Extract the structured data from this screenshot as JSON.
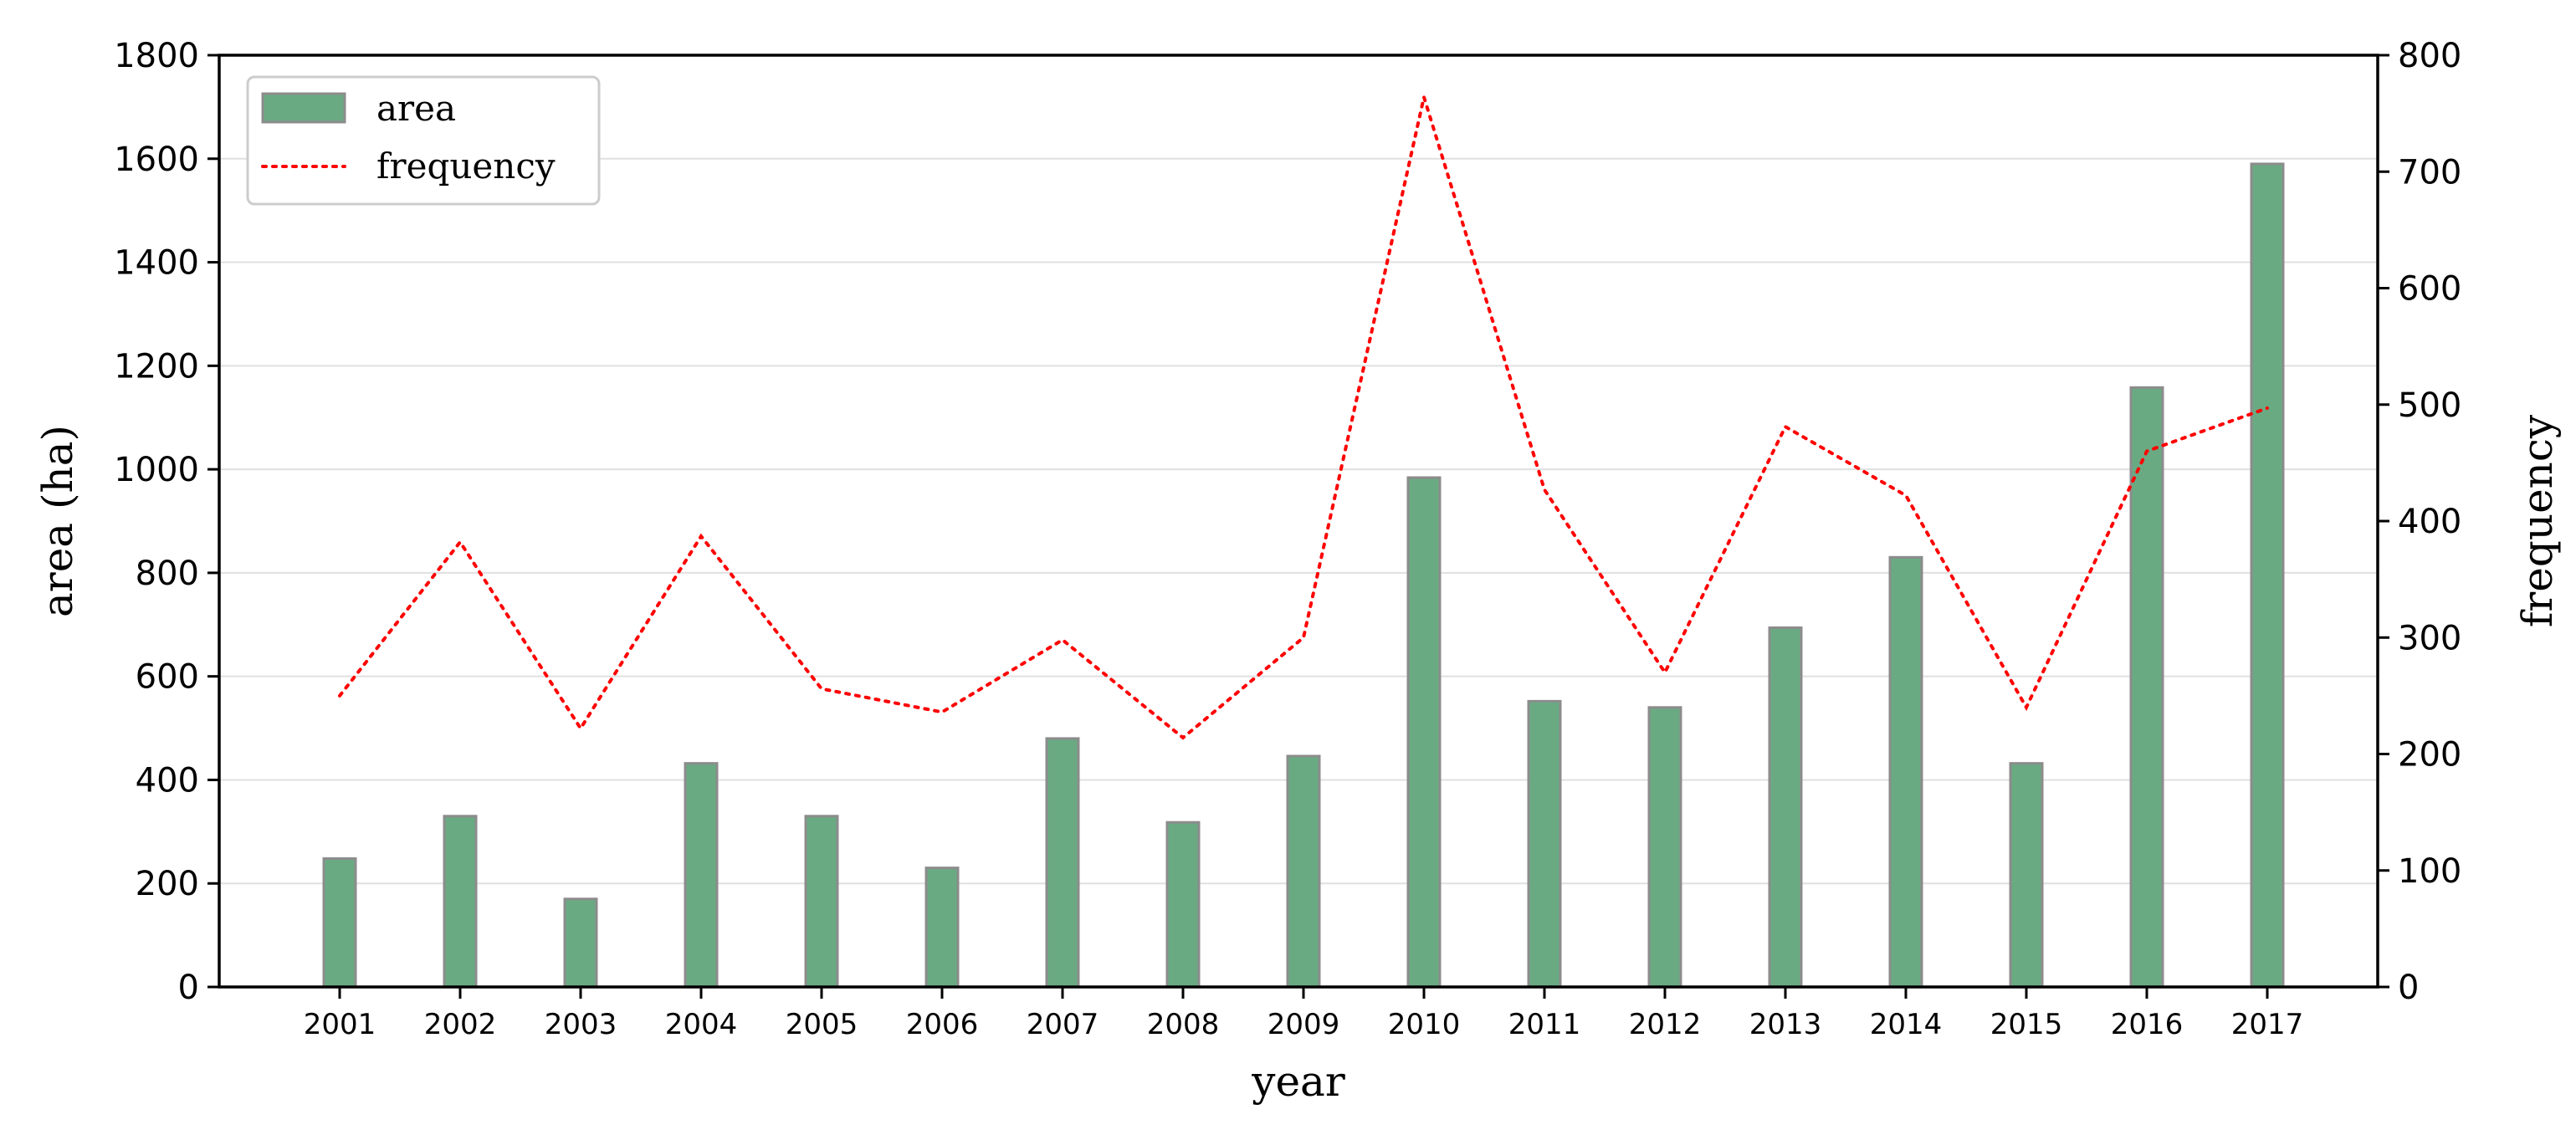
{
  "chart_data": {
    "type": "bar",
    "categories": [
      "2001",
      "2002",
      "2003",
      "2004",
      "2005",
      "2006",
      "2007",
      "2008",
      "2009",
      "2010",
      "2011",
      "2012",
      "2013",
      "2014",
      "2015",
      "2016",
      "2017"
    ],
    "series": [
      {
        "name": "area",
        "kind": "bar",
        "axis": "left",
        "color": "#6aaa83",
        "edge_color": "#8c8c8c",
        "values": [
          248,
          330,
          170,
          432,
          330,
          230,
          480,
          318,
          446,
          984,
          552,
          540,
          694,
          830,
          432,
          1158,
          1590
        ]
      },
      {
        "name": "frequency",
        "kind": "line",
        "line_style": "dotted",
        "axis": "right",
        "color": "#ff0000",
        "values": [
          250,
          382,
          222,
          387,
          256,
          236,
          298,
          214,
          300,
          764,
          427,
          270,
          481,
          422,
          240,
          460,
          497
        ]
      }
    ],
    "xlabel": "year",
    "ylabel": "area (ha)",
    "y2label": "frequency",
    "ylim": [
      0,
      1800
    ],
    "y2lim": [
      0,
      800
    ],
    "yticks": [
      0,
      200,
      400,
      600,
      800,
      1000,
      1200,
      1400,
      1600,
      1800
    ],
    "y2ticks": [
      0,
      100,
      200,
      300,
      400,
      500,
      600,
      700,
      800
    ],
    "grid": "horizontal",
    "legend": "top-left"
  }
}
